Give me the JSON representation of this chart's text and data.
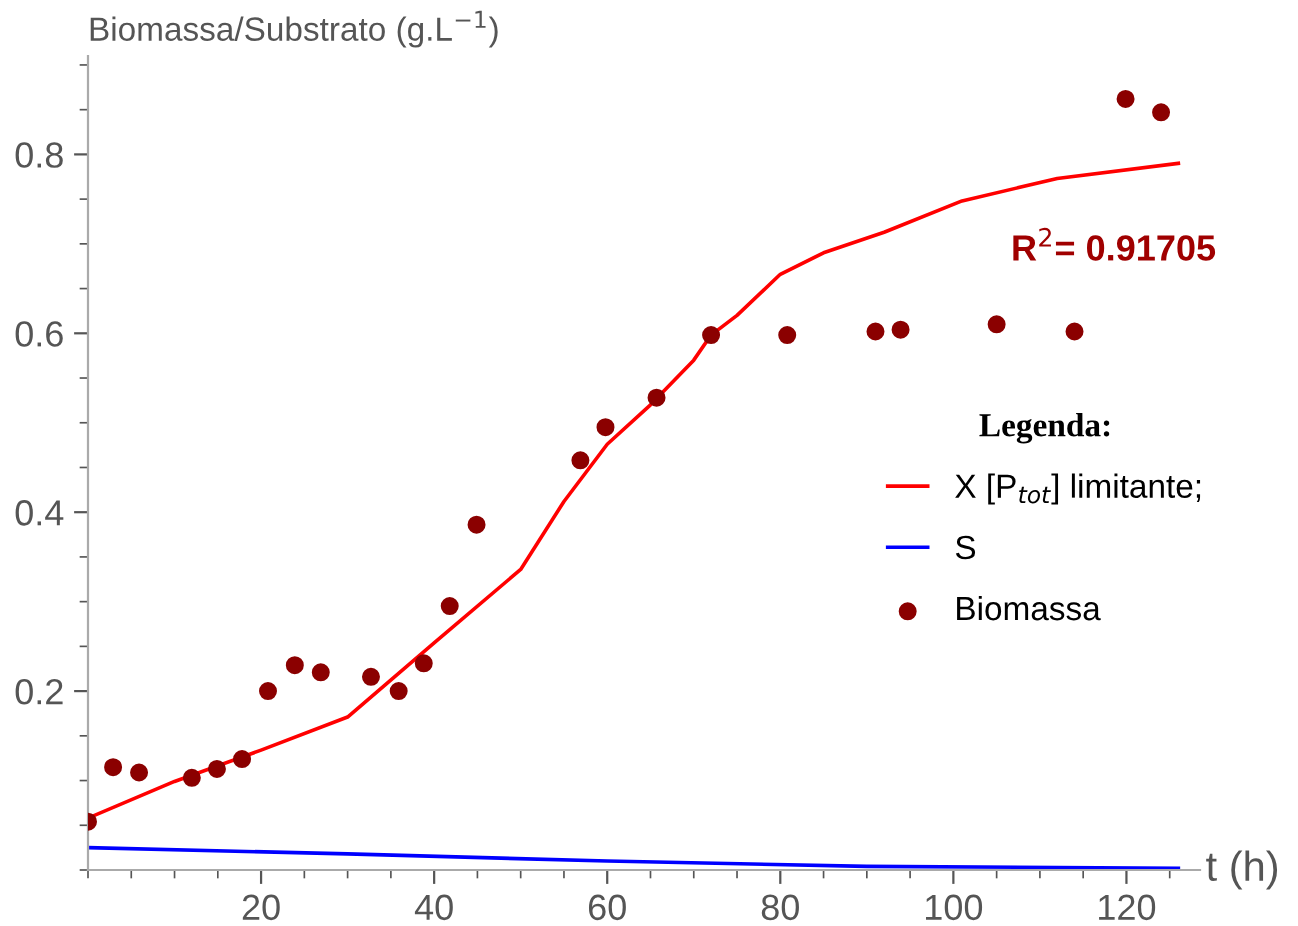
{
  "chart_data": {
    "type": "line",
    "ylabel": "Biomassa/Substrato (g.L$^{−1}$)",
    "xlabel": "t (h)",
    "legend_title": "Legenda:",
    "xlim": [
      0,
      128.5
    ],
    "ylim": [
      0,
      0.91
    ],
    "xticks": [
      20,
      40,
      60,
      80,
      100,
      120
    ],
    "yticks": [
      0.2,
      0.4,
      0.6,
      0.8
    ],
    "grid": false,
    "legend": "right",
    "annotations": [
      "R$^{2}$= 0.91705"
    ],
    "series": [
      {
        "name": "X [P$_{tot}$] limitante;",
        "color": "#ff0000",
        "x": [
          0,
          10,
          20,
          30,
          40,
          50,
          55,
          60,
          65,
          70,
          72,
          75,
          80,
          85,
          92,
          101,
          112,
          126
        ],
        "values": [
          0.058,
          0.099,
          0.134,
          0.171,
          0.254,
          0.336,
          0.412,
          0.476,
          0.52,
          0.57,
          0.598,
          0.62,
          0.666,
          0.69,
          0.713,
          0.748,
          0.773,
          0.79
        ]
      },
      {
        "name": "S",
        "color": "#0000ff",
        "x": [
          0,
          30,
          60,
          90,
          126
        ],
        "values": [
          0.025,
          0.018,
          0.01,
          0.004,
          0.002
        ]
      },
      {
        "name": "Biomassa",
        "type": "scatter",
        "color": "#8b0000",
        "marker": "circle",
        "x": [
          0,
          2.9,
          5.9,
          12,
          14.9,
          17.8,
          20.8,
          23.9,
          26.9,
          32.7,
          35.9,
          38.8,
          41.8,
          44.9,
          56.9,
          59.8,
          65.7,
          72,
          80.8,
          91,
          93.9,
          105,
          114,
          119.9,
          124
        ],
        "values": [
          0.054,
          0.115,
          0.109,
          0.103,
          0.113,
          0.124,
          0.2,
          0.229,
          0.221,
          0.216,
          0.2,
          0.231,
          0.295,
          0.386,
          0.458,
          0.495,
          0.528,
          0.598,
          0.598,
          0.602,
          0.604,
          0.61,
          0.602,
          0.862,
          0.847
        ]
      }
    ]
  }
}
